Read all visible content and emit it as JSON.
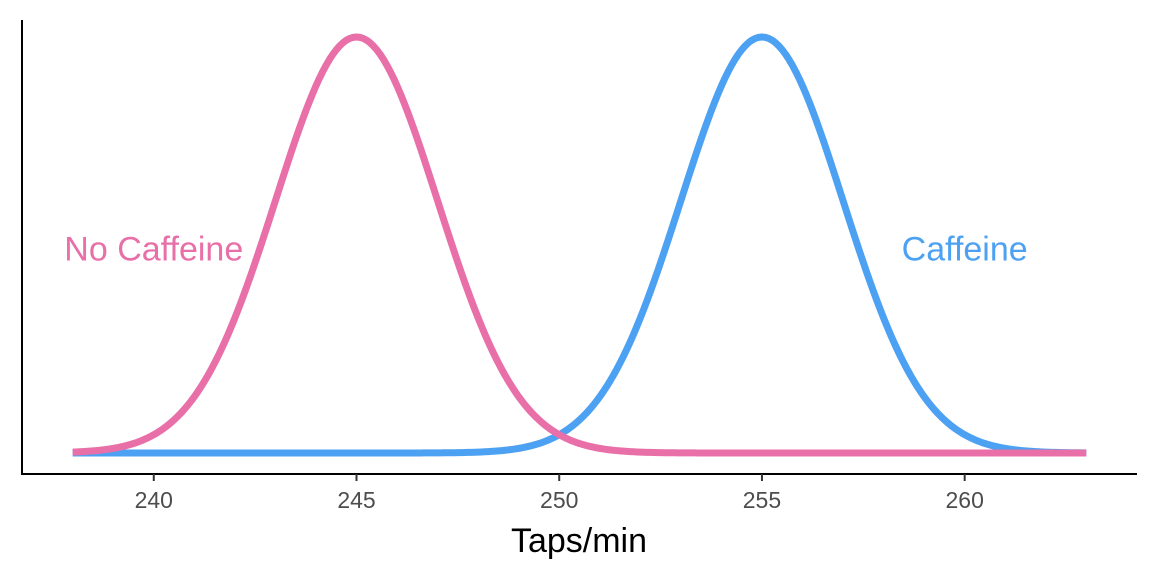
{
  "chart_data": {
    "type": "line",
    "title": "",
    "xlabel": "Taps/min",
    "ylabel": "",
    "xlim": [
      236.75,
      264.25
    ],
    "x_range": [
      238,
      263
    ],
    "x_ticks": [
      240,
      245,
      250,
      255,
      260
    ],
    "y_axis_ticks_shown": false,
    "grid": false,
    "legend": "none (direct labels)",
    "series": [
      {
        "name": "No Caffeine",
        "distribution": "normal",
        "mean": 245,
        "sd": 2,
        "color": "#E86FA8",
        "label_at": [
          240,
          0.098
        ]
      },
      {
        "name": "Caffeine",
        "distribution": "normal",
        "mean": 255,
        "sd": 2,
        "color": "#4DA1F2",
        "label_at": [
          260,
          0.098
        ]
      }
    ]
  }
}
